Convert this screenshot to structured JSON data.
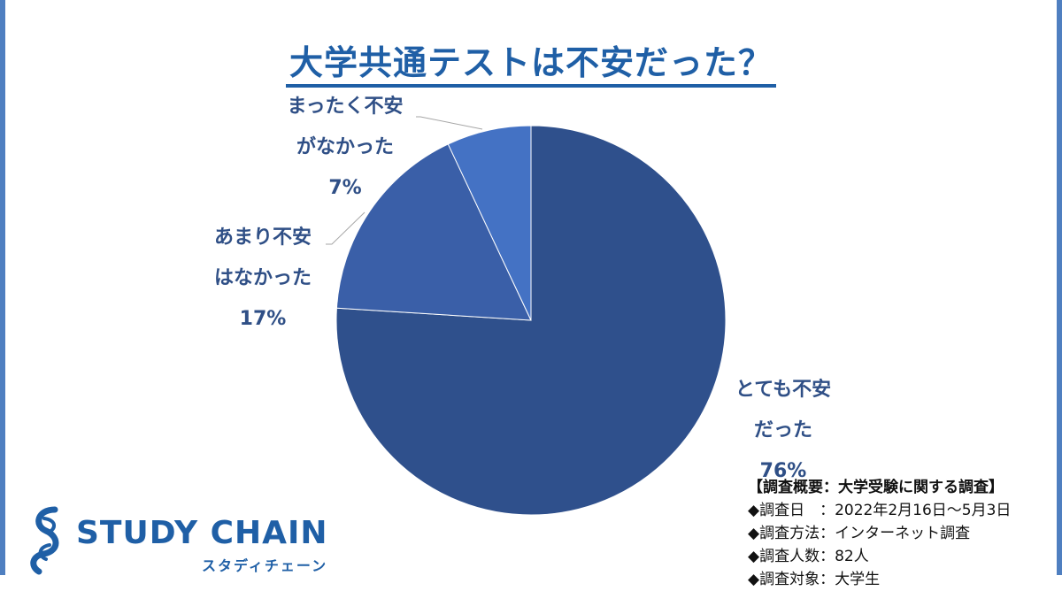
{
  "title": "大学共通テストは不安だった？",
  "chart_data": {
    "type": "pie",
    "title": "大学共通テストは不安だった？",
    "start_angle": "top, clockwise",
    "slices": [
      {
        "label_line1": "とても不安",
        "label_line2": "だった",
        "value": 76,
        "percent_label": "76%",
        "color": "#2f508c"
      },
      {
        "label_line1": "あまり不安",
        "label_line2": "はなかった",
        "value": 17,
        "percent_label": "17%",
        "color": "#3a5fa8"
      },
      {
        "label_line1": "まったく不安",
        "label_line2": "がなかった",
        "value": 7,
        "percent_label": "7%",
        "color": "#4472c4"
      }
    ]
  },
  "survey": {
    "heading": "【調査概要：大学受験に関する調査】",
    "lines": [
      "◆調査日　：2022年2月16日～5月3日",
      "◆調査方法：インターネット調査",
      "◆調査人数：82人",
      "◆調査対象：大学生"
    ]
  },
  "logo": {
    "name": "STUDY CHAIN",
    "sub": "スタディチェーン",
    "color": "#1f5fa6"
  }
}
